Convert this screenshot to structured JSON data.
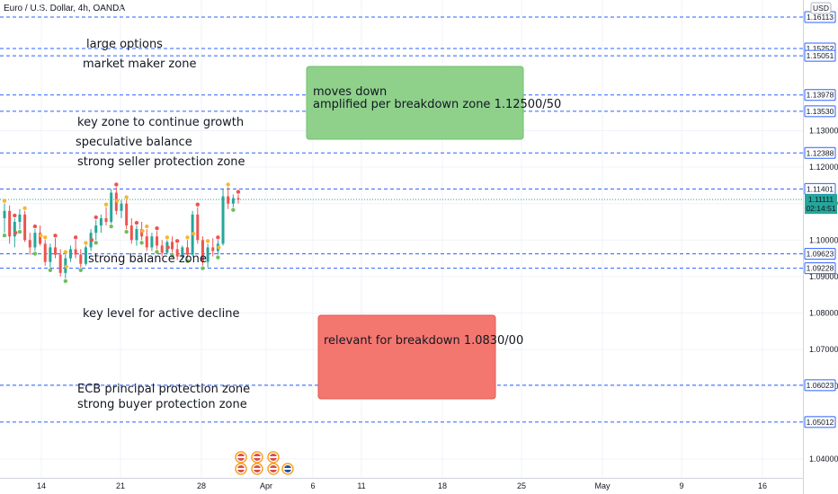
{
  "header": {
    "symbol_line": "Euro / U.S. Dollar, 4h, OANDA",
    "currency": "USD"
  },
  "colors": {
    "level_line": "#2962ff",
    "up_candle": "#26a69a",
    "down_candle": "#ef5350",
    "green_box": "#8fd18b",
    "red_box": "#f4776f",
    "label_bg": "#ffffff",
    "label_border": "#2962ff",
    "current_price_bg": "#26a69a"
  },
  "chart_data": {
    "type": "candlestick",
    "y_axis_range": [
      1.038,
      1.164
    ],
    "price_ticks": [
      "1.13000",
      "1.12000",
      "1.11000",
      "1.10000",
      "1.09000",
      "1.08000",
      "1.07000",
      "1.06000",
      "1.04000"
    ],
    "date_ticks": [
      "14",
      "21",
      "28",
      "Apr",
      "6",
      "11",
      "18",
      "25",
      "May",
      "9",
      "16"
    ],
    "levels": [
      {
        "price": 1.16113,
        "label": "1.16113"
      },
      {
        "price": 1.15252,
        "label": "1.15252"
      },
      {
        "price": 1.15051,
        "label": "1.15051"
      },
      {
        "price": 1.13978,
        "label": "1.13978"
      },
      {
        "price": 1.1353,
        "label": "1.13530"
      },
      {
        "price": 1.12388,
        "label": "1.12388"
      },
      {
        "price": 1.11401,
        "label": "1.11401"
      },
      {
        "price": 1.09623,
        "label": "1.09623"
      },
      {
        "price": 1.09228,
        "label": "1.09228"
      },
      {
        "price": 1.06023,
        "label": "1.06023"
      },
      {
        "price": 1.05012,
        "label": "1.05012"
      }
    ],
    "current_price": {
      "price": 1.11111,
      "label": "1.11111",
      "countdown": "02:14:51"
    },
    "annotations": [
      "large options",
      "market maker zone",
      "key zone to continue growth",
      "speculative balance",
      "strong seller protection zone",
      "strong balance zone",
      "key level for active decline",
      "ECB principal protection zone",
      "strong buyer protection zone"
    ],
    "boxes": [
      {
        "lines": [
          "moves down",
          "amplified per breakdown zone 1.12500/50"
        ],
        "color": "green"
      },
      {
        "lines": [
          "relevant for breakdown 1.0830/00"
        ],
        "color": "red"
      }
    ],
    "candles": [
      [
        1.106,
        1.11,
        1.102,
        1.108
      ],
      [
        1.108,
        1.1095,
        1.099,
        1.101
      ],
      [
        1.101,
        1.106,
        1.098,
        1.105
      ],
      [
        1.105,
        1.1085,
        1.103,
        1.107
      ],
      [
        1.107,
        1.108,
        1.0995,
        1.1
      ],
      [
        1.1,
        1.102,
        1.096,
        1.098
      ],
      [
        1.098,
        1.103,
        1.097,
        1.102
      ],
      [
        1.102,
        1.104,
        1.0985,
        1.099
      ],
      [
        1.099,
        1.1,
        1.093,
        1.094
      ],
      [
        1.094,
        1.099,
        1.0925,
        1.098
      ],
      [
        1.098,
        1.1005,
        1.095,
        1.096
      ],
      [
        1.096,
        1.0975,
        1.09,
        1.091
      ],
      [
        1.091,
        1.096,
        1.0895,
        1.095
      ],
      [
        1.095,
        1.0985,
        1.094,
        1.0975
      ],
      [
        1.0975,
        1.1,
        1.095,
        1.096
      ],
      [
        1.096,
        1.0975,
        1.0925,
        1.0935
      ],
      [
        1.0935,
        1.0985,
        1.093,
        1.098
      ],
      [
        1.098,
        1.103,
        1.097,
        1.102
      ],
      [
        1.102,
        1.1055,
        1.1,
        1.104
      ],
      [
        1.104,
        1.107,
        1.102,
        1.106
      ],
      [
        1.106,
        1.109,
        1.104,
        1.105
      ],
      [
        1.105,
        1.114,
        1.1045,
        1.113
      ],
      [
        1.113,
        1.1145,
        1.107,
        1.108
      ],
      [
        1.108,
        1.111,
        1.106,
        1.11
      ],
      [
        1.11,
        1.111,
        1.103,
        1.104
      ],
      [
        1.104,
        1.106,
        1.099,
        1.1
      ],
      [
        1.1,
        1.104,
        1.0985,
        1.103
      ],
      [
        1.103,
        1.105,
        1.1,
        1.101
      ],
      [
        1.101,
        1.103,
        1.097,
        1.098
      ],
      [
        1.098,
        1.102,
        1.097,
        1.101
      ],
      [
        1.101,
        1.1025,
        1.0975,
        1.0985
      ],
      [
        1.0985,
        1.1,
        1.0955,
        1.0965
      ],
      [
        1.0965,
        1.1,
        1.096,
        1.0995
      ],
      [
        1.0995,
        1.101,
        1.0965,
        1.0975
      ],
      [
        1.0975,
        1.099,
        1.0945,
        1.0955
      ],
      [
        1.0955,
        1.0985,
        1.0945,
        1.098
      ],
      [
        1.098,
        1.1,
        1.095,
        1.096
      ],
      [
        1.096,
        1.108,
        1.0955,
        1.107
      ],
      [
        1.107,
        1.109,
        1.099,
        1.1
      ],
      [
        1.1,
        1.101,
        1.093,
        1.094
      ],
      [
        1.094,
        1.099,
        1.0925,
        1.098
      ],
      [
        1.098,
        1.1005,
        1.0955,
        1.097
      ],
      [
        1.097,
        1.1,
        1.096,
        1.099
      ],
      [
        1.099,
        1.114,
        1.0985,
        1.112
      ],
      [
        1.112,
        1.1145,
        1.1085,
        1.11
      ],
      [
        1.11,
        1.1125,
        1.109,
        1.1115
      ],
      [
        1.1115,
        1.1125,
        1.11,
        1.1111
      ]
    ]
  }
}
